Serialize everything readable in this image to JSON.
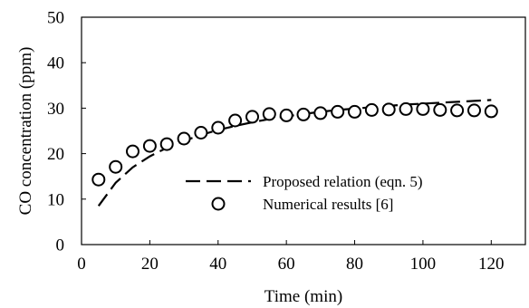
{
  "chart_data": {
    "type": "line",
    "title": "",
    "xlabel": "Time (min)",
    "ylabel": "CO concentration (ppm)",
    "xlim": [
      0,
      130
    ],
    "ylim": [
      0,
      50
    ],
    "xticks": [
      0,
      20,
      40,
      60,
      80,
      100,
      120
    ],
    "yticks": [
      0,
      10,
      20,
      30,
      40,
      50
    ],
    "xtick_labels": [
      "0",
      "20",
      "40",
      "60",
      "80",
      "100",
      "120"
    ],
    "ytick_labels": [
      "0",
      "10",
      "20",
      "30",
      "40",
      "50"
    ],
    "grid": false,
    "legend_position": "center-right",
    "series": [
      {
        "name": "Proposed relation (eqn. 5)",
        "style": "dashed-line",
        "color": "#000000",
        "x": [
          5,
          10,
          15,
          20,
          25,
          30,
          35,
          40,
          45,
          50,
          55,
          60,
          65,
          70,
          75,
          80,
          85,
          90,
          95,
          100,
          105,
          110,
          115,
          120
        ],
        "y": [
          8.5,
          13.6,
          17.0,
          19.4,
          21.3,
          22.8,
          24.1,
          25.2,
          26.1,
          26.9,
          27.6,
          28.2,
          28.7,
          29.2,
          29.6,
          29.9,
          30.2,
          30.5,
          30.8,
          31.0,
          31.2,
          31.4,
          31.6,
          31.8
        ]
      },
      {
        "name": "Numerical results [6]",
        "style": "open-circle",
        "color": "#000000",
        "x": [
          5,
          10,
          15,
          20,
          25,
          30,
          35,
          40,
          45,
          50,
          55,
          60,
          65,
          70,
          75,
          80,
          85,
          90,
          95,
          100,
          105,
          110,
          115,
          120
        ],
        "y": [
          14.3,
          17.1,
          20.5,
          21.7,
          22.1,
          23.3,
          24.6,
          25.7,
          27.3,
          28.1,
          28.7,
          28.4,
          28.6,
          28.9,
          29.2,
          29.2,
          29.6,
          29.7,
          29.8,
          29.8,
          29.6,
          29.5,
          29.5,
          29.3
        ]
      }
    ]
  }
}
